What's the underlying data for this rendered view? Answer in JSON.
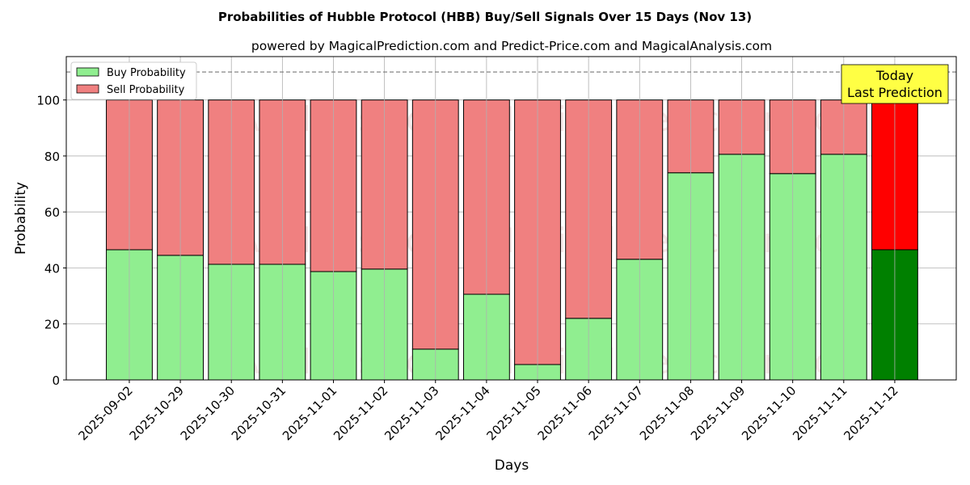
{
  "chart_data": {
    "type": "bar",
    "stacked": true,
    "title": "Probabilities of Hubble Protocol (HBB) Buy/Sell Signals Over 15 Days (Nov 13)",
    "subtitle": "powered by MagicalPrediction.com and Predict-Price.com and MagicalAnalysis.com",
    "xlabel": "Days",
    "ylabel": "Probability",
    "ylim": [
      0,
      115.5
    ],
    "yticks": [
      0,
      20,
      40,
      60,
      80,
      100
    ],
    "grid": true,
    "legend_position": "top-left",
    "categories": [
      "2025-09-02",
      "2025-10-29",
      "2025-10-30",
      "2025-10-31",
      "2025-11-01",
      "2025-11-02",
      "2025-11-03",
      "2025-11-04",
      "2025-11-05",
      "2025-11-06",
      "2025-11-07",
      "2025-11-08",
      "2025-11-09",
      "2025-11-10",
      "2025-11-11",
      "2025-11-12"
    ],
    "series": [
      {
        "name": "Buy Probability",
        "color": "#90ee90",
        "values": [
          46.5,
          44.5,
          41.3,
          41.3,
          38.7,
          39.6,
          11.0,
          30.6,
          5.5,
          22.0,
          43.1,
          74.0,
          80.6,
          73.7,
          80.6,
          46.5
        ]
      },
      {
        "name": "Sell Probability",
        "color": "#f08080",
        "values": [
          53.5,
          55.5,
          58.7,
          58.7,
          61.3,
          60.4,
          89.0,
          69.4,
          94.5,
          78.0,
          56.9,
          26.0,
          19.4,
          26.3,
          19.4,
          53.5
        ]
      }
    ],
    "highlight": {
      "index": 15,
      "buy_color": "#008000",
      "sell_color": "#ff0000"
    },
    "reference_line": 110,
    "annotation": {
      "line1": "Today",
      "line2": "Last Prediction",
      "color": "#ffff44"
    },
    "watermarks": [
      "MagicalAnalysis.com",
      "MagicalPrediction.com"
    ]
  }
}
